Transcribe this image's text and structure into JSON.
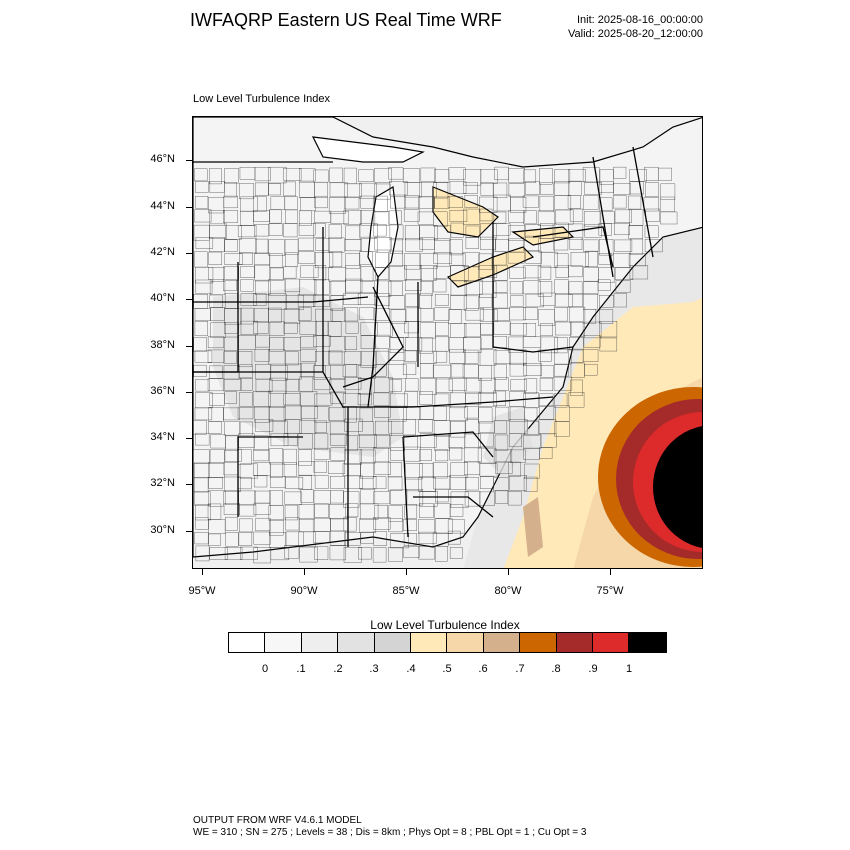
{
  "header": {
    "title": "IWFAQRP Eastern US Real Time WRF",
    "init": "Init: 2025-08-16_00:00:00",
    "valid": "Valid: 2025-08-20_12:00:00"
  },
  "plot": {
    "label": "Low Level Turbulence Index"
  },
  "map": {
    "lat_labels": [
      "46°N",
      "44°N",
      "42°N",
      "40°N",
      "38°N",
      "36°N",
      "34°N",
      "32°N",
      "30°N"
    ],
    "lon_labels": [
      "95°W",
      "90°W",
      "85°W",
      "80°W",
      "75°W"
    ],
    "colors": {
      "land": "#f4f4f4",
      "lake": "#ffffff",
      "ocean": "#ffffff",
      "border": "#000000",
      "county": "#2a2a2a"
    }
  },
  "legend": {
    "title": "Low Level Turbulence Index",
    "labels": [
      "0",
      ".1",
      ".2",
      ".3",
      ".4",
      ".5",
      ".6",
      ".7",
      ".8",
      ".9",
      "1"
    ],
    "colors": [
      "#ffffff",
      "#f7f7f7",
      "#eeeeee",
      "#e2e2e2",
      "#d4d4d4",
      "#ffe9b8",
      "#f5d7a9",
      "#d4b08c",
      "#cc6600",
      "#a52a2a",
      "#dd2a2a",
      "#000000"
    ]
  },
  "footer": {
    "line1": "OUTPUT FROM WRF V4.6.1 MODEL",
    "line2": "WE = 310 ; SN = 275 ; Levels = 38 ; Dis = 8km ; Phys Opt = 8 ; PBL Opt = 1 ; Cu Opt = 3"
  }
}
